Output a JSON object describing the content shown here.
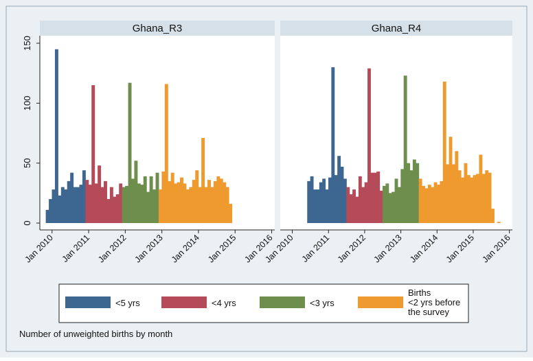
{
  "caption": "Number of unweighted births by month",
  "colors": {
    "background": "#eaf0f4",
    "panel_header": "#d5e0e8",
    "lt5": "#3d6690",
    "lt4": "#b54b59",
    "lt3": "#6d8e4d",
    "lt2": "#ef9a2f"
  },
  "legend": {
    "items": [
      {
        "key": "lt5",
        "label_lines": [
          "<5 yrs"
        ]
      },
      {
        "key": "lt4",
        "label_lines": [
          "<4 yrs"
        ]
      },
      {
        "key": "lt3",
        "label_lines": [
          "<3 yrs"
        ]
      },
      {
        "key": "lt2",
        "label_lines": [
          "Births",
          "<2 yrs before",
          "the survey"
        ]
      }
    ]
  },
  "chart_data": {
    "type": "bar",
    "x_unit": "month",
    "ylim": [
      0,
      150
    ],
    "yticks": [
      0,
      50,
      100,
      150
    ],
    "xlim": [
      "2009-09",
      "2016-02"
    ],
    "xticks": [
      "Jan 2010",
      "Jan 2011",
      "Jan 2012",
      "Jan 2013",
      "Jan 2014",
      "Jan 2015",
      "Jan 2016"
    ],
    "grid": false,
    "legend_position": "bottom",
    "panels": [
      {
        "title": "Ghana_R3",
        "groups": [
          {
            "key": "lt5",
            "start": "2009-11",
            "values": [
              11,
              20,
              28,
              145,
              23,
              30,
              28,
              35,
              42,
              30,
              30,
              32,
              44
            ]
          },
          {
            "key": "lt4",
            "start": "2010-12",
            "values": [
              36,
              32,
              115,
              33,
              48,
              30,
              35,
              20,
              30,
              22,
              24,
              33
            ]
          },
          {
            "key": "lt3",
            "start": "2011-12",
            "values": [
              30,
              31,
              117,
              37,
              52,
              33,
              32,
              39,
              26,
              39,
              28,
              42
            ]
          },
          {
            "key": "lt2",
            "start": "2012-12",
            "values": [
              28,
              43,
              116,
              35,
              42,
              33,
              34,
              38,
              33,
              28,
              30,
              36,
              44,
              30,
              71,
              30,
              36,
              30,
              35,
              39,
              37,
              34,
              30,
              16
            ]
          }
        ]
      },
      {
        "title": "Ghana_R4",
        "groups": [
          {
            "key": "lt5",
            "start": "2010-06",
            "values": [
              35,
              39,
              28,
              28,
              34,
              37,
              28,
              38,
              130,
              40,
              56,
              47,
              37
            ]
          },
          {
            "key": "lt4",
            "start": "2011-07",
            "values": [
              30,
              24,
              28,
              22,
              39,
              30,
              34,
              129,
              42,
              42,
              43,
              27
            ]
          },
          {
            "key": "lt3",
            "start": "2012-07",
            "values": [
              31,
              33,
              25,
              26,
              37,
              30,
              45,
              123,
              50,
              44,
              53,
              50
            ]
          },
          {
            "key": "lt2",
            "start": "2013-07",
            "values": [
              37,
              31,
              29,
              32,
              30,
              34,
              32,
              35,
              118,
              49,
              72,
              49,
              60,
              44,
              38,
              50,
              40,
              38,
              40,
              41,
              57,
              41,
              44,
              42,
              12,
              0,
              1
            ]
          }
        ]
      }
    ]
  }
}
